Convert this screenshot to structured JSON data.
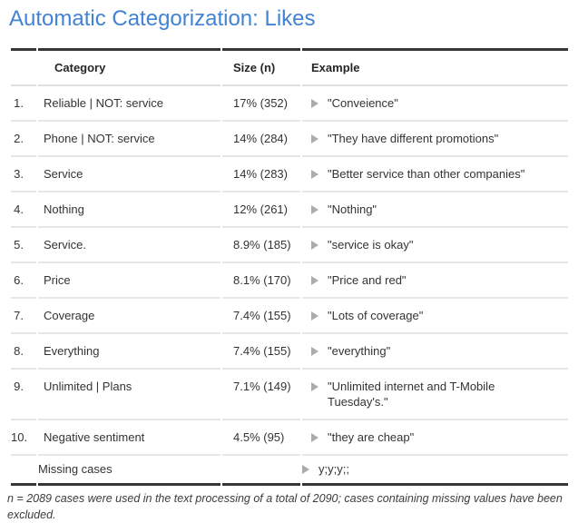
{
  "title": {
    "text": "Automatic Categorization: Likes",
    "color": "#4183d4"
  },
  "table": {
    "columns": [
      {
        "key": "rank",
        "label": ""
      },
      {
        "key": "category",
        "label": "Category"
      },
      {
        "key": "size",
        "label": "Size (n)"
      },
      {
        "key": "example",
        "label": "Example"
      }
    ],
    "arrow_icon": "triangle-right-icon",
    "colors": {
      "heavy_border": "#373737",
      "row_separator": "#e6e6e6",
      "header_separator": "#e0e0e0",
      "arrow": "#ababab",
      "text": "#333333"
    },
    "rows": [
      {
        "rank": "1.",
        "category": "Reliable | NOT: service",
        "size": "17% (352)",
        "example": "\"Conveience\""
      },
      {
        "rank": "2.",
        "category": "Phone | NOT: service",
        "size": "14% (284)",
        "example": "\"They have different promotions\""
      },
      {
        "rank": "3.",
        "category": "Service",
        "size": "14% (283)",
        "example": "\"Better service than other companies\""
      },
      {
        "rank": "4.",
        "category": "Nothing",
        "size": "12% (261)",
        "example": "\"Nothing\""
      },
      {
        "rank": "5.",
        "category": "Service.",
        "size": "8.9% (185)",
        "example": "\"service is okay\""
      },
      {
        "rank": "6.",
        "category": "Price",
        "size": "8.1% (170)",
        "example": "\"Price and red\""
      },
      {
        "rank": "7.",
        "category": "Coverage",
        "size": "7.4% (155)",
        "example": "\"Lots of coverage\""
      },
      {
        "rank": "8.",
        "category": "Everything",
        "size": "7.4% (155)",
        "example": "\"everything\""
      },
      {
        "rank": "9.",
        "category": "Unlimited | Plans",
        "size": "7.1% (149)",
        "example": "\"Unlimited internet and T-Mobile\nTuesday's.\""
      },
      {
        "rank": "10.",
        "category": "Negative sentiment",
        "size": "4.5% (95)",
        "example": "\"they are cheap\""
      },
      {
        "rank": "",
        "category": "Missing cases",
        "size": "",
        "example": "y;y;y;;"
      }
    ]
  },
  "footnote": {
    "text": "n = 2089 cases were used in the text processing of a total of 2090; cases containing missing values have been\nexcluded."
  }
}
